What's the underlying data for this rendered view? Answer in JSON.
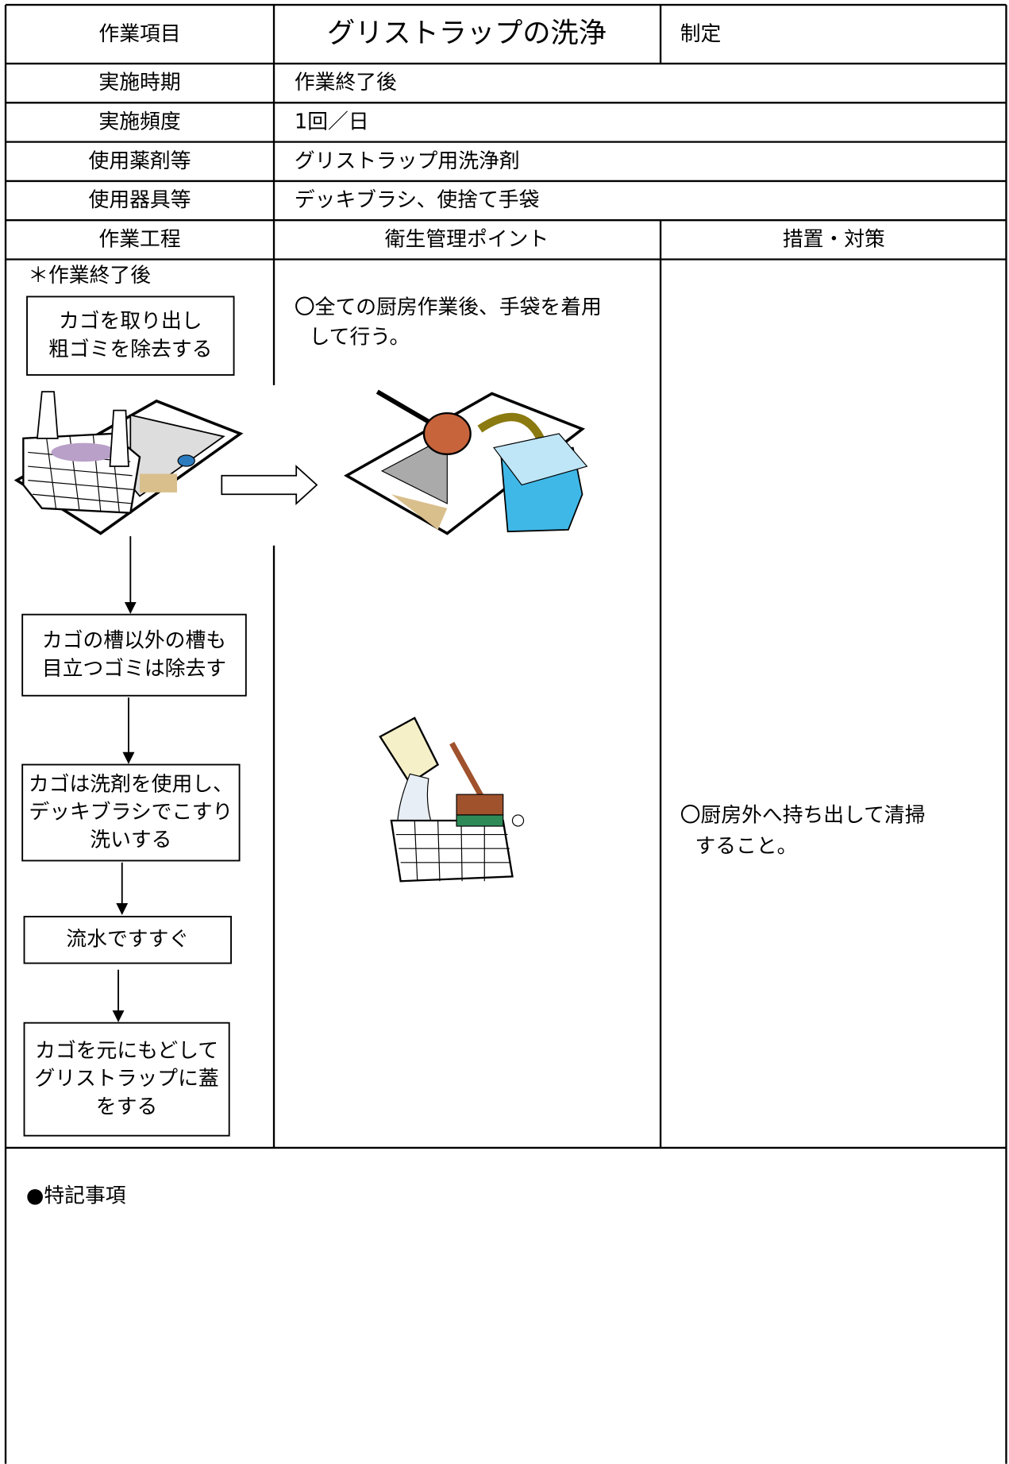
{
  "header": {
    "item_label": "作業項目",
    "title": "グリストラップの洗浄",
    "established_label": "制定"
  },
  "rows": [
    {
      "label": "実施時期",
      "value": "作業終了後"
    },
    {
      "label": "実施頻度",
      "value": "1回／日"
    },
    {
      "label": "使用薬剤等",
      "value": "グリストラップ用洗浄剤"
    },
    {
      "label": "使用器具等",
      "value": "デッキブラシ、使捨て手袋"
    }
  ],
  "columns": [
    "作業工程",
    "衛生管理ポイント",
    "措置・対策"
  ],
  "process": {
    "note": "＊作業終了後",
    "steps": [
      [
        "カゴを取り出し",
        "粗ゴミを除去する"
      ],
      [
        "カゴの槽以外の槽も",
        "目立つゴミは除去す"
      ],
      [
        "カゴは洗剤を使用し、",
        "デッキブラシでこすり",
        "洗いする"
      ],
      [
        "流水ですすぐ"
      ],
      [
        "カゴを元にもどして",
        "グリストラップに蓋",
        "をする"
      ]
    ]
  },
  "hygiene_point": [
    "〇全ての厨房作業後、手袋を着用",
    "して行う。"
  ],
  "measures": [
    "〇厨房外へ持ち出して清掃",
    "すること。"
  ],
  "notes_label": "●特記事項"
}
